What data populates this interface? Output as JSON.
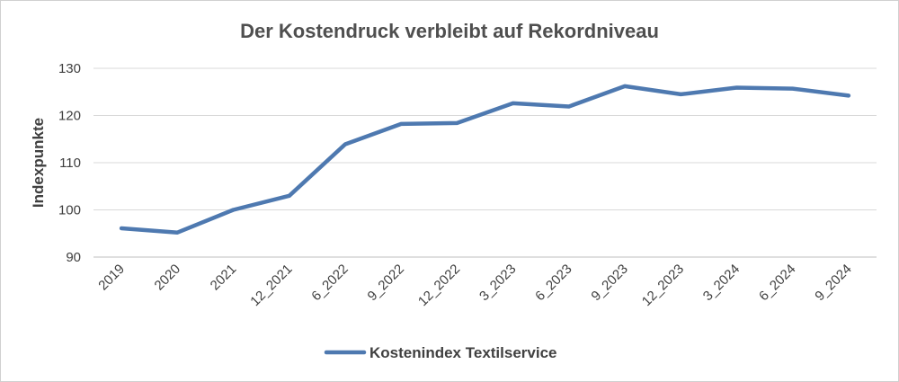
{
  "chart_data": {
    "type": "line",
    "title": "Der Kostendruck verbleibt auf Rekordniveau",
    "xlabel": "",
    "ylabel": "Indexpunkte",
    "categories": [
      "2019",
      "2020",
      "2021",
      "12_2021",
      "6_2022",
      "9_2022",
      "12_2022",
      "3_2023",
      "6_2023",
      "9_2023",
      "12_2023",
      "3_2024",
      "6_2024",
      "9_2024"
    ],
    "series": [
      {
        "name": "Kostenindex Textilservice",
        "values": [
          96.1,
          95.2,
          100.0,
          103.0,
          113.9,
          118.2,
          118.4,
          122.6,
          121.9,
          126.2,
          124.5,
          125.9,
          125.7,
          124.2
        ],
        "color": "#4e79b0"
      }
    ],
    "ylim": [
      90,
      130
    ],
    "yticks": [
      "90",
      "100",
      "110",
      "120",
      "130"
    ],
    "grid": true,
    "legend": "bottom"
  }
}
